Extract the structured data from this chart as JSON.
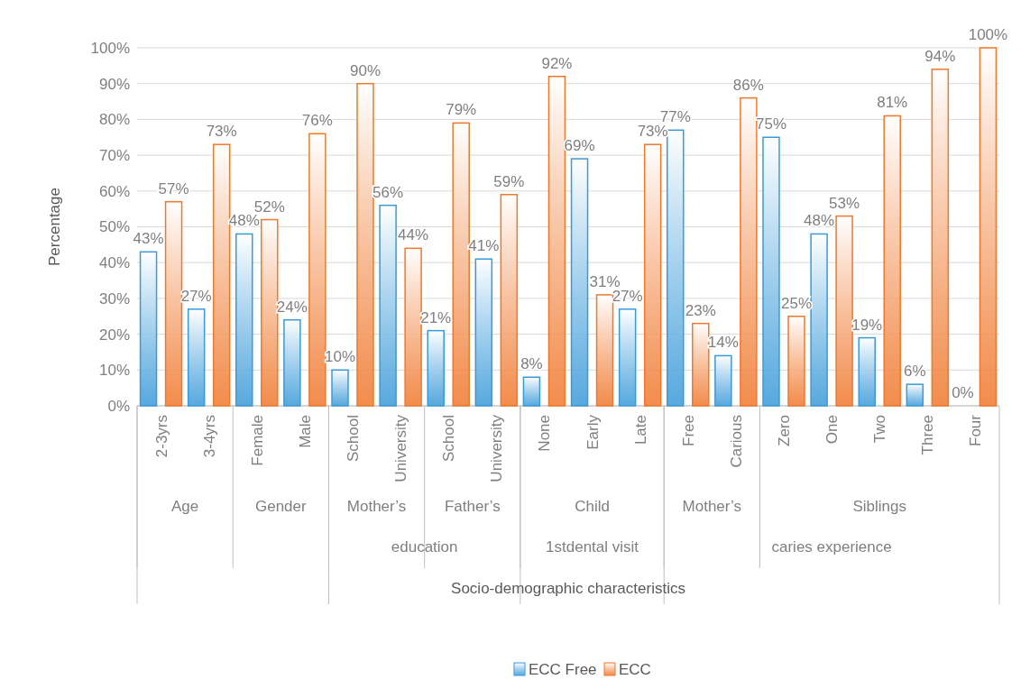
{
  "chart_data": {
    "type": "bar",
    "ylabel": "Percentage",
    "categories": [
      "2-3yrs",
      "3-4yrs",
      "Female",
      "Male",
      "School",
      "University",
      "School",
      "University",
      "None",
      "Early",
      "Late",
      "Free",
      "Carious",
      "Zero",
      "One",
      "Two",
      "Three",
      "Four"
    ],
    "series": [
      {
        "name": "ECC Free",
        "color": "#3a9ad9",
        "values": [
          43,
          27,
          48,
          24,
          10,
          56,
          21,
          41,
          8,
          69,
          27,
          77,
          14,
          75,
          48,
          19,
          6,
          0
        ],
        "value_labels": [
          "43%",
          "27%",
          "48%",
          "24%",
          "10%",
          "56%",
          "21%",
          "41%",
          "8%",
          "69%",
          "27%",
          "77%",
          "14%",
          "75%",
          "48%",
          "19%",
          "6%",
          "0%"
        ]
      },
      {
        "name": "ECC",
        "color": "#f0782d",
        "values": [
          57,
          73,
          52,
          76,
          90,
          44,
          79,
          59,
          92,
          31,
          73,
          23,
          86,
          25,
          53,
          81,
          94,
          100
        ],
        "value_labels": [
          "57%",
          "73%",
          "52%",
          "76%",
          "90%",
          "44%",
          "79%",
          "59%",
          "92%",
          "31%",
          "73%",
          "23%",
          "86%",
          "25%",
          "53%",
          "81%",
          "94%",
          "100%"
        ]
      }
    ],
    "annotations": [
      "Age",
      "Gender",
      "Mother’s",
      "Father’s",
      "Child",
      "Mother’s",
      "Siblings",
      "education",
      "1stdental visit",
      "caries experience",
      "Socio-demographic characteristics"
    ],
    "ylim": [
      0,
      100
    ],
    "yticks": [
      {
        "value": 0,
        "label": "0%"
      },
      {
        "value": 10,
        "label": "10%"
      },
      {
        "value": 20,
        "label": "20%"
      },
      {
        "value": 30,
        "label": "30%"
      },
      {
        "value": 40,
        "label": "40%"
      },
      {
        "value": 50,
        "label": "50%"
      },
      {
        "value": 60,
        "label": "60%"
      },
      {
        "value": 70,
        "label": "70%"
      },
      {
        "value": 80,
        "label": "80%"
      },
      {
        "value": 90,
        "label": "90%"
      },
      {
        "value": 100,
        "label": "100%"
      }
    ],
    "grid": "y",
    "legend": "bottom"
  }
}
